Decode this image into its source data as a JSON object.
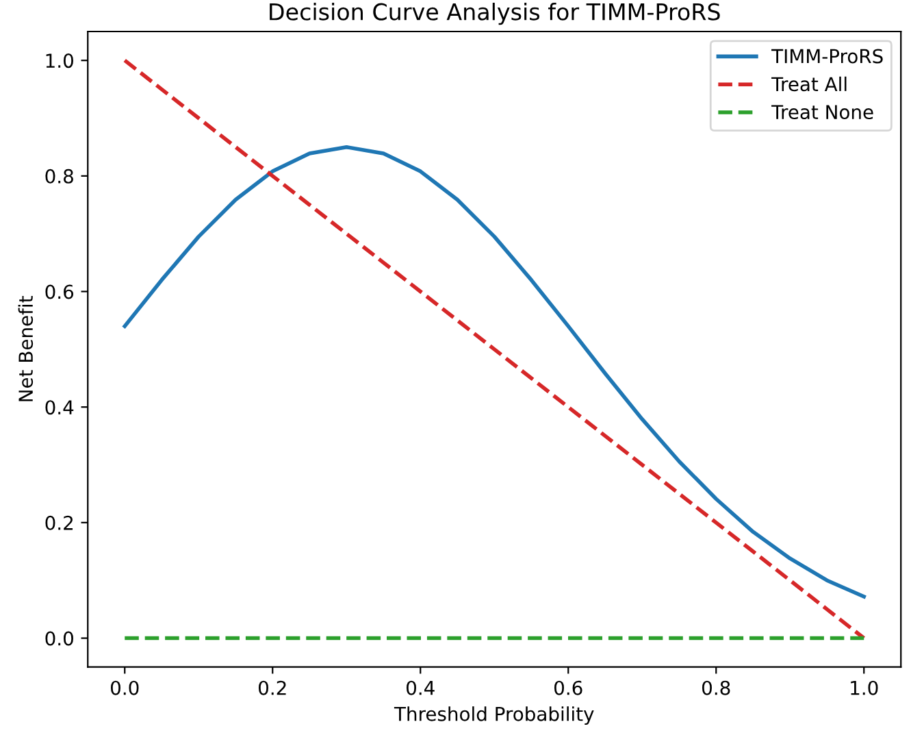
{
  "chart_data": {
    "type": "line",
    "title": "Decision Curve Analysis for TIMM-ProRS",
    "xlabel": "Threshold Probability",
    "ylabel": "Net Benefit",
    "x": [
      0,
      0.05,
      0.1,
      0.15,
      0.2,
      0.25,
      0.3,
      0.35,
      0.4,
      0.45,
      0.5,
      0.55,
      0.6,
      0.65,
      0.7,
      0.75,
      0.8,
      0.85,
      0.9,
      0.95,
      1.0
    ],
    "series": [
      {
        "name": "TIMM-ProRS",
        "color": "#1f77b4",
        "line_style": "solid",
        "values": [
          0.54,
          0.62,
          0.695,
          0.759,
          0.808,
          0.839,
          0.85,
          0.839,
          0.808,
          0.759,
          0.695,
          0.62,
          0.54,
          0.458,
          0.379,
          0.306,
          0.241,
          0.184,
          0.138,
          0.1,
          0.072
        ]
      },
      {
        "name": "Treat All",
        "color": "#d62728",
        "line_style": "dashed",
        "values": [
          1.0,
          0.95,
          0.9,
          0.85,
          0.8,
          0.75,
          0.7,
          0.65,
          0.6,
          0.55,
          0.5,
          0.45,
          0.4,
          0.35,
          0.3,
          0.25,
          0.2,
          0.15,
          0.1,
          0.05,
          0.0
        ]
      },
      {
        "name": "Treat None",
        "color": "#2ca02c",
        "line_style": "dashed",
        "values": [
          0,
          0,
          0,
          0,
          0,
          0,
          0,
          0,
          0,
          0,
          0,
          0,
          0,
          0,
          0,
          0,
          0,
          0,
          0,
          0,
          0
        ]
      }
    ],
    "xlim": [
      -0.05,
      1.05
    ],
    "ylim": [
      -0.05,
      1.05
    ],
    "xticks": [
      {
        "value": 0,
        "label": "0.0"
      },
      0.2,
      0.4,
      0.6,
      0.8,
      {
        "value": 1,
        "label": "1.0"
      }
    ],
    "yticks": [
      {
        "value": 0,
        "label": "0.0"
      },
      0.2,
      0.4,
      0.6,
      0.8,
      {
        "value": 1,
        "label": "1.0"
      }
    ],
    "grid": false,
    "legend": "top right",
    "marker": "none"
  }
}
